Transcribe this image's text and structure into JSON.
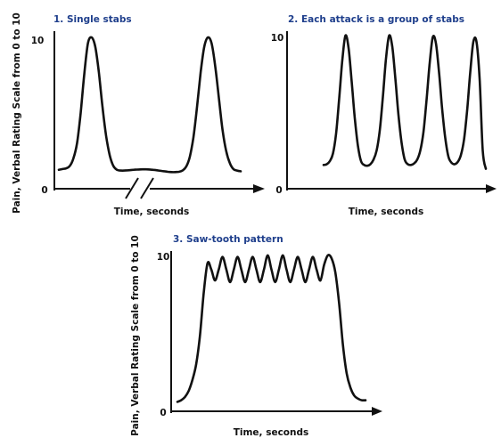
{
  "chart_data": [
    {
      "type": "line",
      "title": "1. Single stabs",
      "xlabel": "Time, seconds",
      "ylabel": "Pain, Verbal Rating Scale from 0 to 10",
      "yticks": [
        "0",
        "10"
      ],
      "ylim": [
        0,
        10
      ],
      "x_axis_break": true,
      "series": [
        {
          "x": [
            0,
            0.5,
            1,
            1.5,
            2,
            2.5,
            3,
            3.5,
            4,
            4.5,
            5,
            5.5,
            6,
            6.5,
            7,
            7.5,
            8,
            8.5,
            9,
            9.5,
            10,
            10.5,
            11,
            11.5,
            12,
            12.5,
            13,
            13.5,
            14,
            14.5,
            15,
            15.5,
            16,
            16.5,
            17,
            17.5,
            18,
            18.5,
            19,
            19.5,
            20,
            20.5,
            21,
            21.5,
            22,
            22.5,
            23,
            23.5,
            24,
            24.5,
            25
          ],
          "values": [
            1.25,
            1.3,
            1.35,
            1.5,
            2.0,
            3.0,
            5.0,
            7.6,
            9.6,
            10.0,
            9.4,
            7.7,
            5.4,
            3.5,
            2.2,
            1.5,
            1.25,
            1.2,
            1.2,
            1.22,
            1.24,
            1.26,
            1.27,
            1.28,
            1.28,
            1.27,
            1.25,
            1.22,
            1.18,
            1.15,
            1.12,
            1.1,
            1.1,
            1.12,
            1.2,
            1.45,
            2.1,
            3.4,
            5.4,
            7.7,
            9.4,
            10.0,
            9.6,
            8.1,
            6.0,
            3.9,
            2.5,
            1.7,
            1.3,
            1.2,
            1.15
          ]
        }
      ]
    },
    {
      "type": "line",
      "title": "2. Each attack is a group of stabs",
      "xlabel": "Time, seconds",
      "ylabel": "",
      "yticks": [
        "0",
        "10"
      ],
      "ylim": [
        0,
        10
      ],
      "series": [
        {
          "x": [
            0,
            0.5,
            1,
            1.5,
            2,
            2.5,
            3,
            3.5,
            4,
            4.5,
            5,
            5.5,
            6,
            6.5,
            7,
            7.5,
            8,
            8.5,
            9,
            9.5,
            10,
            10.5,
            11,
            11.5,
            12,
            12.5,
            13,
            13.5,
            14,
            14.5,
            15,
            15.5,
            16,
            16.5,
            17,
            17.5,
            18,
            18.5,
            19,
            19.5,
            20,
            20.5,
            21,
            21.5,
            22,
            22.5,
            23,
            23.5,
            24,
            24.5,
            25,
            25.5,
            26
          ],
          "values": [
            1.55,
            1.6,
            1.8,
            2.3,
            3.6,
            5.9,
            8.4,
            10.0,
            9.2,
            7.0,
            4.6,
            2.8,
            1.8,
            1.55,
            1.5,
            1.6,
            1.9,
            2.5,
            3.8,
            6.0,
            8.5,
            10.0,
            9.3,
            7.2,
            4.8,
            3.0,
            1.9,
            1.6,
            1.55,
            1.65,
            1.9,
            2.5,
            3.7,
            5.8,
            8.2,
            9.9,
            9.5,
            7.6,
            5.2,
            3.3,
            2.1,
            1.7,
            1.6,
            1.75,
            2.2,
            3.2,
            5.1,
            7.6,
            9.6,
            9.6,
            7.2,
            2.5,
            1.3
          ]
        }
      ]
    },
    {
      "type": "line",
      "title": "3. Saw-tooth pattern",
      "xlabel": "Time, seconds",
      "ylabel": "Pain, Verbal Rating Scale from 0 to 10",
      "yticks": [
        "0",
        "10"
      ],
      "ylim": [
        0,
        10
      ],
      "series": [
        {
          "x": [
            0,
            1,
            2,
            3,
            4,
            5,
            6,
            7,
            8,
            9,
            10,
            11,
            12,
            13,
            14,
            15,
            16,
            17,
            18,
            19,
            20,
            21,
            22,
            23,
            24,
            25,
            26,
            27,
            28,
            29,
            30,
            31,
            32,
            33,
            34,
            35,
            36,
            37,
            38,
            39,
            40,
            41,
            42,
            43,
            44,
            45,
            46,
            47,
            48,
            49,
            50
          ],
          "values": [
            0.6,
            0.7,
            0.9,
            1.3,
            2.0,
            3.0,
            4.8,
            7.5,
            9.4,
            9.0,
            8.3,
            9.0,
            9.8,
            9.0,
            8.2,
            9.0,
            9.8,
            9.0,
            8.2,
            9.0,
            9.8,
            9.0,
            8.2,
            9.0,
            9.9,
            9.0,
            8.2,
            9.0,
            9.9,
            9.0,
            8.2,
            9.0,
            9.8,
            9.0,
            8.2,
            9.0,
            9.8,
            9.0,
            8.3,
            9.3,
            9.9,
            9.7,
            8.8,
            6.8,
            4.2,
            2.4,
            1.5,
            1.0,
            0.8,
            0.7,
            0.7
          ]
        }
      ]
    }
  ]
}
